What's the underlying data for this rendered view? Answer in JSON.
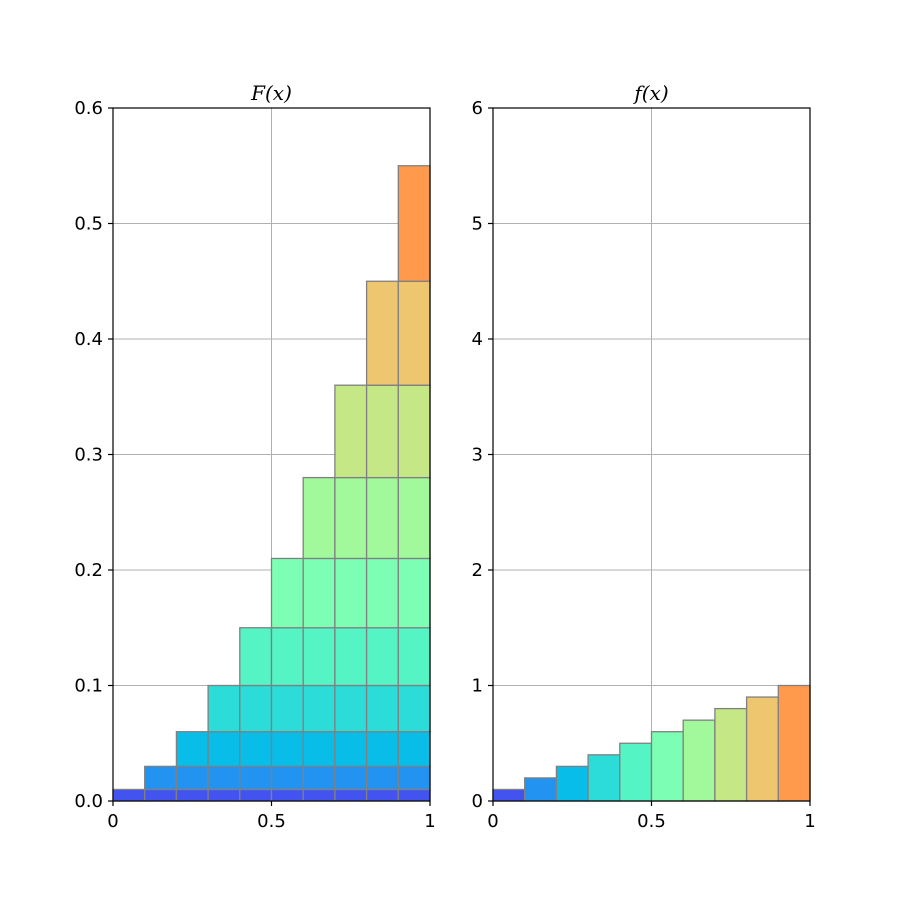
{
  "chart_data": [
    {
      "type": "bar",
      "subtype": "stacked-cumulative",
      "title": "F(x)",
      "x_bins": [
        [
          0,
          0.1
        ],
        [
          0.1,
          0.2
        ],
        [
          0.2,
          0.3
        ],
        [
          0.3,
          0.4
        ],
        [
          0.4,
          0.5
        ],
        [
          0.5,
          0.6
        ],
        [
          0.6,
          0.7
        ],
        [
          0.7,
          0.8
        ],
        [
          0.8,
          0.9
        ],
        [
          0.9,
          1.0
        ]
      ],
      "layer_increments": [
        0.01,
        0.02,
        0.03,
        0.04,
        0.05,
        0.06,
        0.07,
        0.08,
        0.09,
        0.1
      ],
      "column_totals": [
        0.01,
        0.03,
        0.06,
        0.1,
        0.15,
        0.21,
        0.28,
        0.36,
        0.45,
        0.55
      ],
      "xlim": [
        0,
        1
      ],
      "ylim": [
        0,
        0.6
      ],
      "xticks": [
        0,
        0.5,
        1
      ],
      "xtick_labels": [
        "0",
        "0.5",
        "1"
      ],
      "yticks": [
        0,
        0.1,
        0.2,
        0.3,
        0.4,
        0.5,
        0.6
      ],
      "ytick_labels": [
        "0.0",
        "0.1",
        "0.2",
        "0.3",
        "0.4",
        "0.5",
        "0.6"
      ],
      "grid": true
    },
    {
      "type": "bar",
      "title": "f(x)",
      "x_bins": [
        [
          0,
          0.1
        ],
        [
          0.1,
          0.2
        ],
        [
          0.2,
          0.3
        ],
        [
          0.3,
          0.4
        ],
        [
          0.4,
          0.5
        ],
        [
          0.5,
          0.6
        ],
        [
          0.6,
          0.7
        ],
        [
          0.7,
          0.8
        ],
        [
          0.8,
          0.9
        ],
        [
          0.9,
          1.0
        ]
      ],
      "values": [
        0.1,
        0.2,
        0.3,
        0.4,
        0.5,
        0.6,
        0.7,
        0.8,
        0.9,
        1.0
      ],
      "xlim": [
        0,
        1
      ],
      "ylim": [
        0,
        6
      ],
      "xticks": [
        0,
        0.5,
        1
      ],
      "xtick_labels": [
        "0",
        "0.5",
        "1"
      ],
      "yticks": [
        0,
        1,
        2,
        3,
        4,
        5,
        6
      ],
      "ytick_labels": [
        "0",
        "1",
        "2",
        "3",
        "4",
        "5",
        "6"
      ],
      "grid": true
    }
  ],
  "colors": {
    "bins": [
      "#4353ef",
      "#2393f1",
      "#08bde8",
      "#2cdcd8",
      "#54f4c4",
      "#7cffb5",
      "#a1f99c",
      "#c6e785",
      "#edc66f",
      "#ff9a4d"
    ],
    "edge": "#808080",
    "grid": "#b0b0b0"
  }
}
